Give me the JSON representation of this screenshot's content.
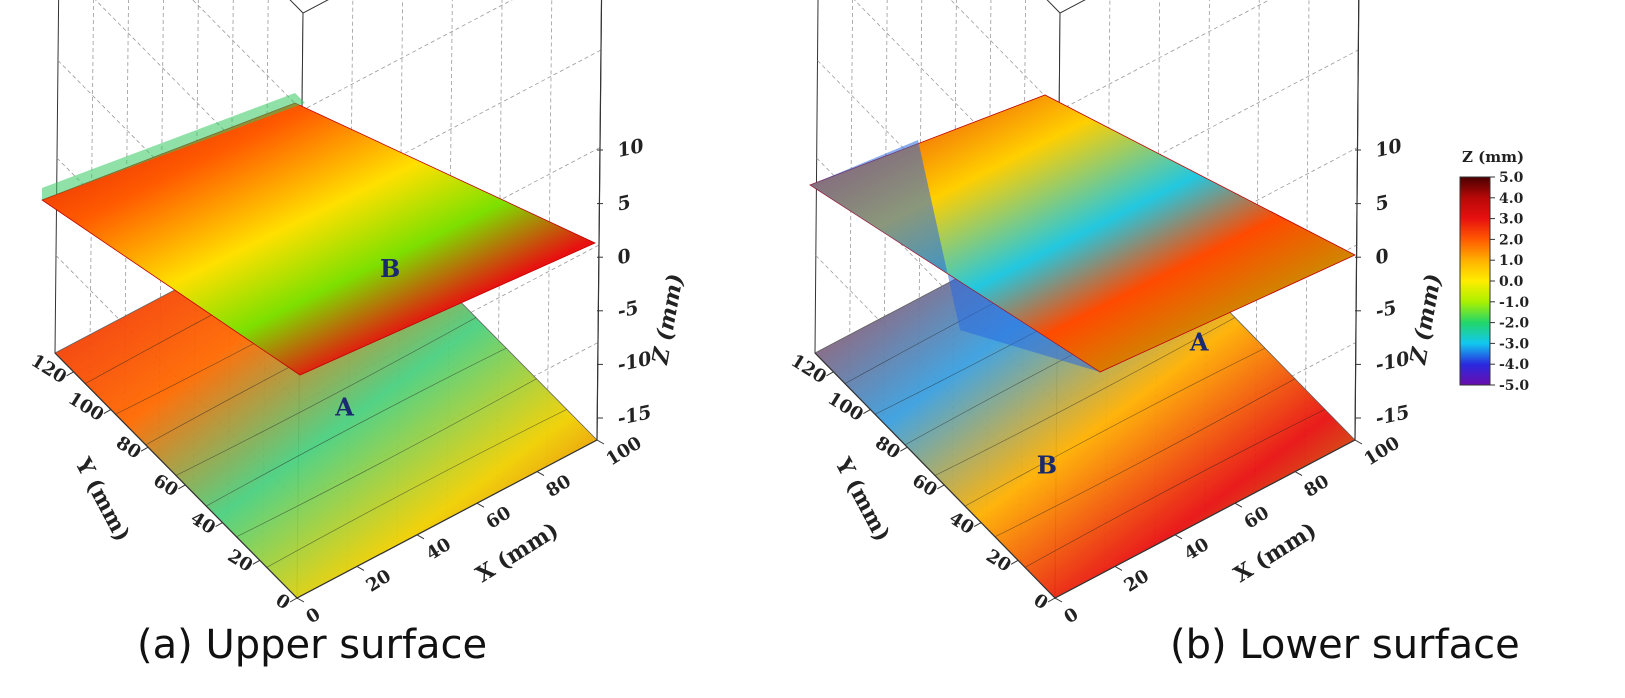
{
  "chart_data": [
    {
      "type": "surface3d",
      "caption": "(a) Upper surface",
      "xlabel": "X (mm)",
      "ylabel": "Y (mm)",
      "zlabel": "Z (mm)",
      "x_ticks": [
        "0",
        "20",
        "40",
        "60",
        "80",
        "100"
      ],
      "y_ticks": [
        "0",
        "20",
        "40",
        "60",
        "80",
        "100",
        "120"
      ],
      "z_ticks": [
        "10",
        "5",
        "0",
        "-5",
        "-10",
        "-15"
      ],
      "xlim": [
        0,
        100
      ],
      "ylim": [
        0,
        130
      ],
      "zlim": [
        -15,
        10
      ],
      "grid": true,
      "annotations": [
        {
          "text": "A",
          "x": 50,
          "y": 55
        },
        {
          "text": "B",
          "x": 90,
          "y": 95
        }
      ]
    },
    {
      "type": "surface3d",
      "caption": "(b) Lower surface",
      "xlabel": "X (mm)",
      "ylabel": "Y (mm)",
      "zlabel": "Z (mm)",
      "x_ticks": [
        "0",
        "20",
        "40",
        "60",
        "80",
        "100"
      ],
      "y_ticks": [
        "0",
        "20",
        "40",
        "60",
        "80",
        "100",
        "120"
      ],
      "z_ticks": [
        "10",
        "5",
        "0",
        "-5",
        "-10",
        "-15"
      ],
      "xlim": [
        0,
        100
      ],
      "ylim": [
        0,
        130
      ],
      "zlim": [
        -15,
        10
      ],
      "grid": true,
      "annotations": [
        {
          "text": "A",
          "x": 85,
          "y": 60
        },
        {
          "text": "B",
          "x": 25,
          "y": 45
        }
      ]
    }
  ],
  "colorbar": {
    "title": "Z (mm)",
    "labels": [
      "5.0",
      "4.0",
      "3.0",
      "2.0",
      "1.0",
      "0.0",
      "-1.0",
      "-2.0",
      "-3.0",
      "-4.0",
      "-5.0"
    ],
    "range": [
      -5,
      5
    ],
    "colors": [
      "#6a0dad",
      "#2a2ae0",
      "#12c8f0",
      "#22d66a",
      "#aaf000",
      "#ffee00",
      "#ffb000",
      "#ff5a00",
      "#e81010",
      "#b80808",
      "#4a0000"
    ]
  },
  "colors": {
    "annotation": "#1a2a6e",
    "axis": "#333333",
    "grid": "#9a9a9a"
  }
}
